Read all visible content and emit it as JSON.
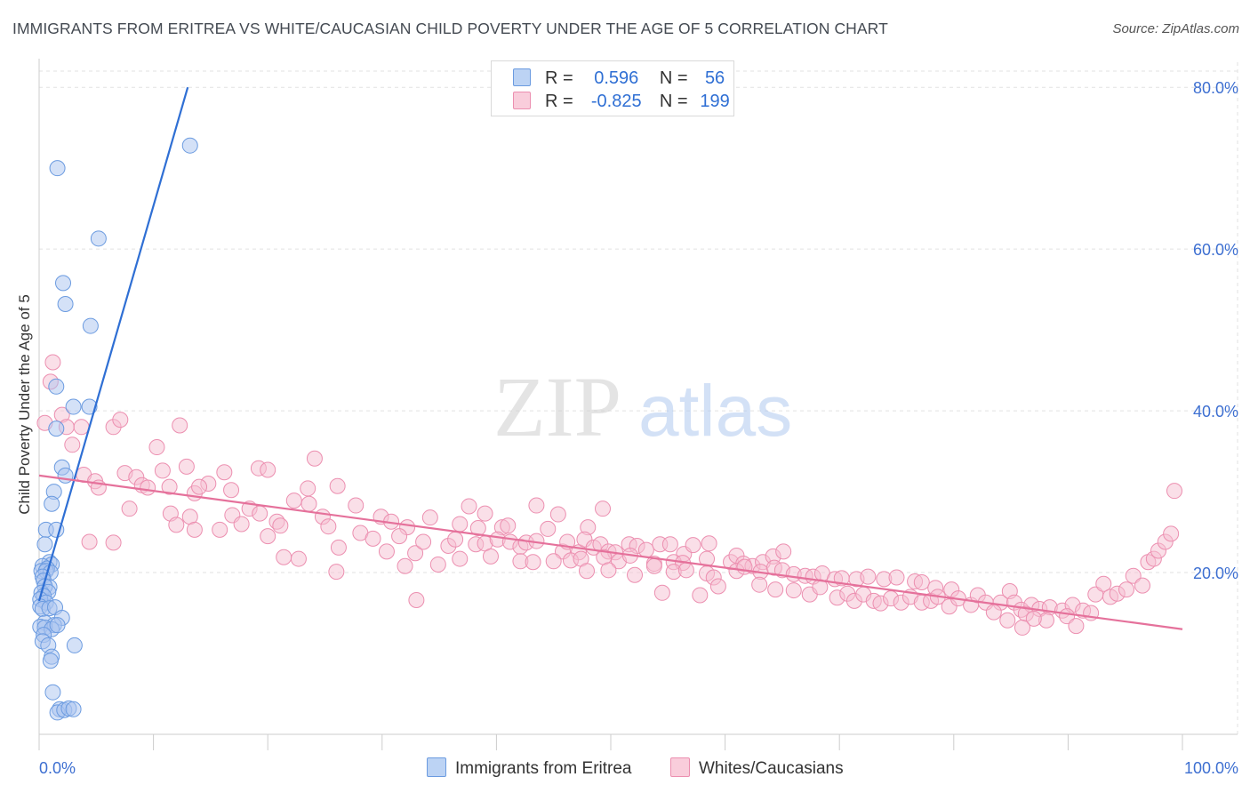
{
  "title": "IMMIGRANTS FROM ERITREA VS WHITE/CAUCASIAN CHILD POVERTY UNDER THE AGE OF 5 CORRELATION CHART",
  "source": "Source: ZipAtlas.com",
  "watermark": {
    "zip": "ZIP",
    "atlas": "atlas"
  },
  "colors": {
    "blue_fill": "#a9c4ef",
    "blue_stroke": "#6b9be0",
    "blue_line": "#2f6fd4",
    "pink_fill": "#f6bfd1",
    "pink_stroke": "#ec8fb0",
    "pink_line": "#e5719b",
    "grid": "#e2e2e2",
    "axis_text": "#3d6fd1"
  },
  "legend": {
    "rows": [
      {
        "r_label": "R =",
        "r_value": "0.596",
        "n_label": "N =",
        "n_value": "56"
      },
      {
        "r_label": "R =",
        "r_value": "-0.825",
        "n_label": "N =",
        "n_value": "199"
      }
    ]
  },
  "bottom_legend": {
    "series1": "Immigrants from Eritrea",
    "series2": "Whites/Caucasians"
  },
  "chart_data": {
    "type": "scatter",
    "title": "IMMIGRANTS FROM ERITREA VS WHITE/CAUCASIAN CHILD POVERTY UNDER THE AGE OF 5 CORRELATION CHART",
    "xlabel": "",
    "ylabel": "Child Poverty Under the Age of 5",
    "xlim": [
      0,
      100
    ],
    "ylim": [
      0,
      82
    ],
    "x_tick_labels": [
      "0.0%",
      "100.0%"
    ],
    "y_ticks": [
      20,
      40,
      60,
      80
    ],
    "y_tick_labels": [
      "20.0%",
      "40.0%",
      "60.0%",
      "80.0%"
    ],
    "series": [
      {
        "name": "Immigrants from Eritrea",
        "R": 0.596,
        "N": 56,
        "trend": {
          "x": [
            0.0,
            13.0
          ],
          "y": [
            16.5,
            80.0
          ]
        },
        "points": [
          [
            13.2,
            72.8
          ],
          [
            1.6,
            70
          ],
          [
            5.2,
            61.3
          ],
          [
            2.1,
            55.8
          ],
          [
            2.3,
            53.2
          ],
          [
            4.5,
            50.5
          ],
          [
            1.5,
            43
          ],
          [
            3.0,
            40.5
          ],
          [
            4.4,
            40.5
          ],
          [
            1.5,
            37.8
          ],
          [
            2.0,
            33
          ],
          [
            2.3,
            32
          ],
          [
            1.3,
            30
          ],
          [
            1.1,
            28.5
          ],
          [
            0.6,
            25.3
          ],
          [
            1.5,
            25.3
          ],
          [
            0.5,
            23.5
          ],
          [
            0.9,
            21.3
          ],
          [
            1.1,
            21
          ],
          [
            0.3,
            20.8
          ],
          [
            0.7,
            20.5
          ],
          [
            0.2,
            20.2
          ],
          [
            0.6,
            20.2
          ],
          [
            1.0,
            20
          ],
          [
            0.3,
            19.5
          ],
          [
            0.4,
            19
          ],
          [
            0.9,
            18.2
          ],
          [
            0.5,
            18.3
          ],
          [
            0.2,
            17.5
          ],
          [
            0.8,
            17.6
          ],
          [
            0.4,
            17.1
          ],
          [
            0.1,
            16.7
          ],
          [
            0.6,
            16.3
          ],
          [
            0.1,
            15.8
          ],
          [
            0.3,
            15.5
          ],
          [
            0.9,
            15.6
          ],
          [
            1.4,
            15.7
          ],
          [
            2.0,
            14.4
          ],
          [
            0.5,
            13.8
          ],
          [
            1.3,
            13.5
          ],
          [
            0.1,
            13.3
          ],
          [
            0.5,
            13.2
          ],
          [
            1.1,
            13.0
          ],
          [
            1.6,
            13.5
          ],
          [
            0.4,
            12.3
          ],
          [
            0.3,
            11.5
          ],
          [
            0.8,
            11
          ],
          [
            3.1,
            11
          ],
          [
            1.1,
            9.6
          ],
          [
            1.0,
            9.1
          ],
          [
            1.2,
            5.2
          ],
          [
            1.8,
            3.1
          ],
          [
            1.6,
            2.7
          ],
          [
            2.2,
            3
          ],
          [
            2.6,
            3.2
          ],
          [
            3.0,
            3.1
          ]
        ]
      },
      {
        "name": "Whites/Caucasians",
        "R": -0.825,
        "N": 199,
        "trend": {
          "x": [
            0.0,
            100.0
          ],
          "y": [
            32.0,
            13.0
          ]
        },
        "points": [
          [
            1.2,
            46.0
          ],
          [
            1.0,
            43.6
          ],
          [
            2.0,
            39.5
          ],
          [
            0.5,
            38.5
          ],
          [
            2.4,
            38
          ],
          [
            3.7,
            38
          ],
          [
            6.5,
            38
          ],
          [
            7.1,
            38.9
          ],
          [
            12.3,
            38.2
          ],
          [
            2.9,
            35.8
          ],
          [
            10.3,
            35.5
          ],
          [
            3.9,
            32.1
          ],
          [
            4.9,
            31.3
          ],
          [
            7.5,
            32.3
          ],
          [
            8.5,
            31.8
          ],
          [
            10.8,
            32.6
          ],
          [
            12.9,
            33.1
          ],
          [
            14.8,
            31
          ],
          [
            16.2,
            32.4
          ],
          [
            19.2,
            32.9
          ],
          [
            20.0,
            32.7
          ],
          [
            24.1,
            34.1
          ],
          [
            5.2,
            30.5
          ],
          [
            9.0,
            30.8
          ],
          [
            9.5,
            30.5
          ],
          [
            11.4,
            30.6
          ],
          [
            13.6,
            29.8
          ],
          [
            14.0,
            30.6
          ],
          [
            16.8,
            30.2
          ],
          [
            22.3,
            28.9
          ],
          [
            23.5,
            30.4
          ],
          [
            26.1,
            30.7
          ],
          [
            7.9,
            27.9
          ],
          [
            11.5,
            27.3
          ],
          [
            13.2,
            26.9
          ],
          [
            16.9,
            27.1
          ],
          [
            17.7,
            26
          ],
          [
            18.4,
            27.9
          ],
          [
            19.3,
            27.3
          ],
          [
            20.8,
            26.3
          ],
          [
            23.6,
            28.5
          ],
          [
            24.8,
            26.9
          ],
          [
            27.7,
            28.3
          ],
          [
            29.9,
            26.9
          ],
          [
            30.8,
            26.3
          ],
          [
            32.2,
            25.6
          ],
          [
            34.2,
            26.8
          ],
          [
            36.8,
            26
          ],
          [
            37.6,
            28.2
          ],
          [
            38.4,
            25.5
          ],
          [
            39.0,
            27.3
          ],
          [
            40.5,
            25.6
          ],
          [
            41.0,
            25.8
          ],
          [
            43.5,
            28.3
          ],
          [
            44.5,
            25.4
          ],
          [
            45.4,
            27.2
          ],
          [
            48.0,
            25.6
          ],
          [
            49.3,
            27.9
          ],
          [
            4.4,
            23.8
          ],
          [
            6.5,
            23.7
          ],
          [
            12.0,
            25.9
          ],
          [
            13.6,
            25.3
          ],
          [
            15.8,
            25.3
          ],
          [
            20.0,
            24.5
          ],
          [
            21.1,
            25.8
          ],
          [
            25.3,
            25.7
          ],
          [
            26.2,
            23.1
          ],
          [
            28.1,
            24.9
          ],
          [
            29.2,
            24.2
          ],
          [
            30.4,
            22.6
          ],
          [
            31.5,
            24.5
          ],
          [
            32.9,
            22.4
          ],
          [
            33.6,
            23.8
          ],
          [
            35.8,
            23.3
          ],
          [
            36.4,
            24.1
          ],
          [
            38.2,
            23.5
          ],
          [
            39.0,
            23.6
          ],
          [
            40.1,
            24.1
          ],
          [
            41.2,
            23.8
          ],
          [
            42.1,
            23.2
          ],
          [
            42.6,
            23.7
          ],
          [
            43.5,
            23.9
          ],
          [
            45.8,
            22.6
          ],
          [
            46.2,
            23.8
          ],
          [
            47.2,
            22.5
          ],
          [
            47.7,
            24.1
          ],
          [
            48.5,
            23.1
          ],
          [
            49.1,
            23.5
          ],
          [
            49.8,
            22.6
          ],
          [
            50.4,
            22.5
          ],
          [
            51.6,
            23.5
          ],
          [
            52.3,
            23.3
          ],
          [
            53.1,
            22.8
          ],
          [
            54.3,
            23.5
          ],
          [
            55.2,
            23.5
          ],
          [
            56.4,
            22.3
          ],
          [
            57.2,
            23.4
          ],
          [
            58.6,
            23.6
          ],
          [
            21.4,
            21.9
          ],
          [
            22.7,
            21.7
          ],
          [
            34.9,
            21
          ],
          [
            36.8,
            21.7
          ],
          [
            39.5,
            22
          ],
          [
            42.1,
            21.4
          ],
          [
            43.2,
            21.3
          ],
          [
            45.0,
            21.4
          ],
          [
            46.5,
            21.5
          ],
          [
            47.4,
            21.7
          ],
          [
            49.4,
            21.9
          ],
          [
            50.7,
            21.4
          ],
          [
            51.7,
            22.1
          ],
          [
            53.8,
            21.1
          ],
          [
            55.5,
            21.3
          ],
          [
            56.3,
            21.2
          ],
          [
            58.4,
            21.7
          ],
          [
            60.5,
            21.3
          ],
          [
            61.0,
            22.1
          ],
          [
            61.6,
            21.1
          ],
          [
            62.4,
            20.8
          ],
          [
            63.3,
            21.3
          ],
          [
            64.2,
            22
          ],
          [
            65.1,
            22.6
          ],
          [
            26.0,
            20.1
          ],
          [
            32.0,
            20.8
          ],
          [
            47.9,
            20.2
          ],
          [
            49.8,
            20.3
          ],
          [
            52.1,
            19.7
          ],
          [
            53.8,
            20.8
          ],
          [
            55.5,
            20.1
          ],
          [
            56.6,
            20.3
          ],
          [
            58.4,
            19.9
          ],
          [
            59.0,
            19.4
          ],
          [
            61.0,
            20.2
          ],
          [
            61.7,
            20.7
          ],
          [
            63.1,
            20.1
          ],
          [
            64.3,
            20.6
          ],
          [
            65.0,
            20.3
          ],
          [
            66.0,
            19.8
          ],
          [
            67.0,
            19.6
          ],
          [
            67.7,
            19.5
          ],
          [
            68.5,
            19.9
          ],
          [
            69.6,
            19.2
          ],
          [
            70.2,
            19.3
          ],
          [
            71.5,
            19.2
          ],
          [
            72.5,
            19.5
          ],
          [
            73.9,
            19.2
          ],
          [
            75.0,
            19.4
          ],
          [
            76.6,
            18.9
          ],
          [
            77.2,
            18.8
          ],
          [
            78.4,
            18.1
          ],
          [
            79.8,
            17.9
          ],
          [
            63.0,
            18.5
          ],
          [
            64.4,
            17.9
          ],
          [
            66.0,
            17.8
          ],
          [
            67.4,
            17.3
          ],
          [
            68.3,
            18.2
          ],
          [
            69.8,
            16.9
          ],
          [
            70.7,
            17.4
          ],
          [
            71.3,
            16.5
          ],
          [
            72.1,
            17.3
          ],
          [
            73.0,
            16.5
          ],
          [
            73.6,
            16.2
          ],
          [
            74.5,
            16.8
          ],
          [
            75.4,
            16.3
          ],
          [
            76.2,
            17.0
          ],
          [
            77.2,
            16.3
          ],
          [
            78.0,
            16.5
          ],
          [
            78.6,
            17.0
          ],
          [
            79.6,
            15.8
          ],
          [
            80.4,
            16.8
          ],
          [
            81.5,
            16.0
          ],
          [
            82.1,
            17.2
          ],
          [
            82.8,
            16.3
          ],
          [
            84.1,
            16.3
          ],
          [
            84.9,
            17.7
          ],
          [
            85.3,
            16.3
          ],
          [
            85.9,
            15.4
          ],
          [
            86.8,
            16.0
          ],
          [
            87.5,
            15.5
          ],
          [
            88.4,
            15.7
          ],
          [
            89.5,
            15.3
          ],
          [
            90.4,
            16.0
          ],
          [
            91.3,
            15.3
          ],
          [
            92.4,
            17.3
          ],
          [
            93.1,
            18.6
          ],
          [
            93.7,
            17.0
          ],
          [
            94.3,
            17.4
          ],
          [
            95.1,
            17.9
          ],
          [
            95.7,
            19.6
          ],
          [
            96.5,
            18.4
          ],
          [
            97.0,
            21.3
          ],
          [
            97.5,
            21.7
          ],
          [
            97.9,
            22.7
          ],
          [
            98.5,
            23.8
          ],
          [
            99.0,
            24.8
          ],
          [
            99.3,
            30.1
          ],
          [
            33.0,
            16.6
          ],
          [
            54.5,
            17.5
          ],
          [
            57.8,
            17.2
          ],
          [
            59.4,
            18.3
          ],
          [
            83.5,
            15.1
          ],
          [
            86.3,
            14.9
          ],
          [
            88.1,
            14.1
          ],
          [
            89.9,
            14.6
          ],
          [
            84.7,
            14.1
          ],
          [
            87.0,
            14.3
          ],
          [
            92.0,
            15.0
          ],
          [
            90.7,
            13.4
          ],
          [
            86.0,
            13.2
          ]
        ]
      }
    ]
  }
}
